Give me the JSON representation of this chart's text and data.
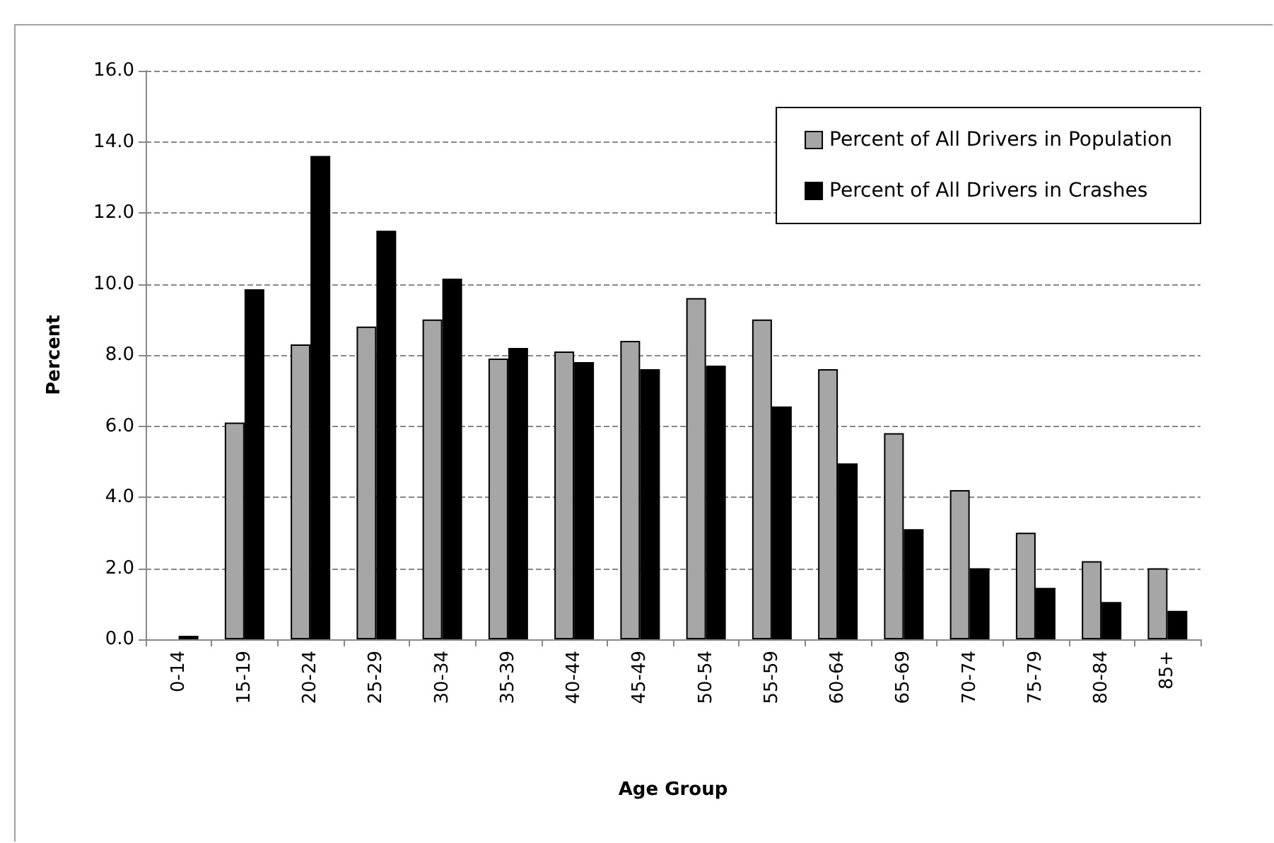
{
  "chart_data": {
    "type": "bar",
    "xlabel": "Age Group",
    "ylabel": "Percent",
    "categories": [
      "0-14",
      "15-19",
      "20-24",
      "25-29",
      "30-34",
      "35-39",
      "40-44",
      "45-49",
      "50-54",
      "55-59",
      "60-64",
      "65-69",
      "70-74",
      "75-79",
      "80-84",
      "85+"
    ],
    "series": [
      {
        "name": "Percent of All Drivers in Population",
        "color": "#a6a6a6",
        "values": [
          0.0,
          6.1,
          8.3,
          8.8,
          9.0,
          7.9,
          8.1,
          8.4,
          9.6,
          9.0,
          7.6,
          5.8,
          4.2,
          3.0,
          2.2,
          2.0
        ]
      },
      {
        "name": "Percent of All Drivers in Crashes",
        "color": "#000000",
        "values": [
          0.1,
          9.85,
          13.6,
          11.5,
          10.15,
          8.2,
          7.8,
          7.6,
          7.7,
          6.55,
          4.95,
          3.1,
          2.0,
          1.45,
          1.05,
          0.8
        ]
      }
    ],
    "ylim": [
      0,
      16
    ],
    "yticks": [
      {
        "value": 0,
        "label": "0.0"
      },
      {
        "value": 2,
        "label": "2.0"
      },
      {
        "value": 4,
        "label": "4.0"
      },
      {
        "value": 6,
        "label": "6.0"
      },
      {
        "value": 8,
        "label": "8.0"
      },
      {
        "value": 10,
        "label": "10.0"
      },
      {
        "value": 12,
        "label": "12.0"
      },
      {
        "value": 14,
        "label": "14.0"
      },
      {
        "value": 16,
        "label": "16.0"
      }
    ],
    "grid": "y",
    "legend": "top right"
  }
}
